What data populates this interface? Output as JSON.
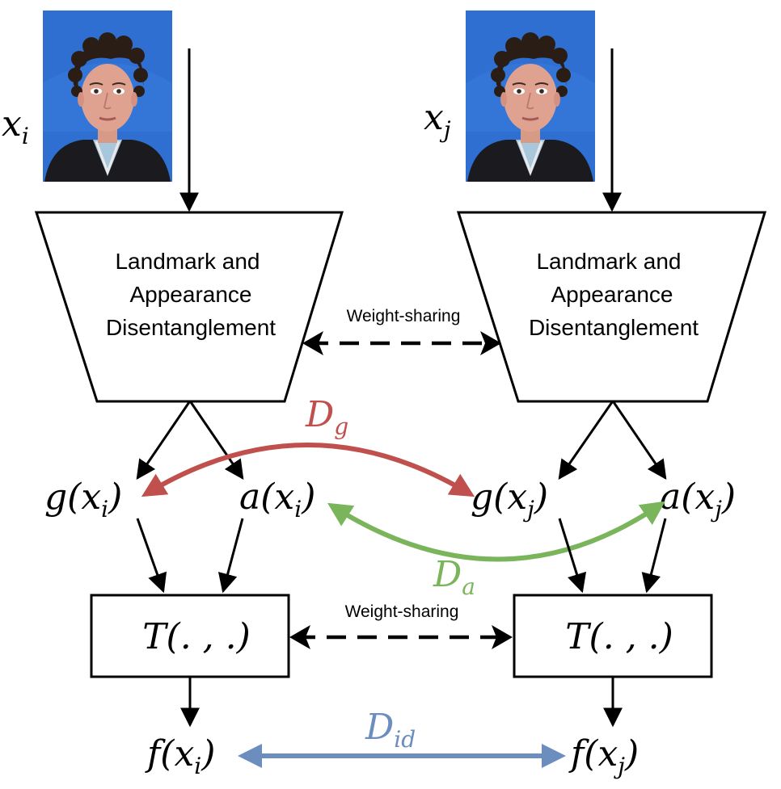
{
  "inputs": {
    "left": {
      "var": "x",
      "sub": "i"
    },
    "right": {
      "var": "x",
      "sub": "j"
    }
  },
  "module": {
    "line1": "Landmark and",
    "line2": "Appearance",
    "line3": "Disentanglement"
  },
  "weight_sharing_label": "Weight-sharing",
  "features": {
    "g_left": {
      "fn": "g(",
      "var": "x",
      "sub": "i",
      "close": ")"
    },
    "a_left": {
      "fn": "a(",
      "var": "x",
      "sub": "i",
      "close": ")"
    },
    "g_right": {
      "fn": "g(",
      "var": "x",
      "sub": "j",
      "close": ")"
    },
    "a_right": {
      "fn": "a(",
      "var": "x",
      "sub": "j",
      "close": ")"
    }
  },
  "transform_label": "T(. , .)",
  "outputs": {
    "left": {
      "fn": "f(",
      "var": "x",
      "sub": "i",
      "close": ")"
    },
    "right": {
      "fn": "f(",
      "var": "x",
      "sub": "j",
      "close": ")"
    }
  },
  "distances": {
    "geometry": {
      "main": "D",
      "sub": "g",
      "color": "#c0504d"
    },
    "appearance": {
      "main": "D",
      "sub": "a",
      "color": "#7ab55c"
    },
    "identity": {
      "main": "D",
      "sub": "id",
      "color": "#6c8ebf"
    }
  },
  "colors": {
    "photo_background": "#2f6fd1",
    "stroke": "#000000"
  }
}
